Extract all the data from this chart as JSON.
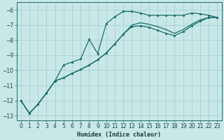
{
  "xlabel": "Humidex (Indice chaleur)",
  "ylabel": "",
  "background_color": "#c8e8e8",
  "grid_color": "#a8cece",
  "line_color": "#1a6b6b",
  "xlim": [
    -0.5,
    23.5
  ],
  "ylim": [
    -13.3,
    -5.5
  ],
  "yticks": [
    -6,
    -7,
    -8,
    -9,
    -10,
    -11,
    -12,
    -13
  ],
  "xticks": [
    0,
    1,
    2,
    3,
    4,
    5,
    6,
    7,
    8,
    9,
    10,
    11,
    12,
    13,
    14,
    15,
    16,
    17,
    18,
    19,
    20,
    21,
    22,
    23
  ],
  "curve1_x": [
    0,
    1,
    2,
    3,
    4,
    5,
    6,
    7,
    8,
    9,
    10,
    11,
    12,
    13,
    14,
    15,
    16,
    17,
    18,
    19,
    20,
    21,
    22,
    23
  ],
  "curve1_y": [
    -12.0,
    -12.85,
    -12.25,
    -11.5,
    -10.7,
    -9.65,
    -9.45,
    -9.25,
    -7.95,
    -8.9,
    -6.9,
    -6.45,
    -6.1,
    -6.1,
    -6.2,
    -6.35,
    -6.35,
    -6.35,
    -6.35,
    -6.35,
    -6.2,
    -6.25,
    -6.35,
    -6.5
  ],
  "curve2_x": [
    0,
    1,
    2,
    3,
    4,
    5,
    6,
    7,
    8,
    9,
    10,
    11,
    12,
    13,
    14,
    15,
    16,
    17,
    18,
    19,
    20,
    21,
    22,
    23
  ],
  "curve2_y": [
    -12.0,
    -12.85,
    -12.25,
    -11.5,
    -10.7,
    -10.5,
    -10.2,
    -9.95,
    -9.65,
    -9.3,
    -8.85,
    -8.25,
    -7.6,
    -7.1,
    -7.05,
    -7.15,
    -7.35,
    -7.55,
    -7.7,
    -7.45,
    -7.05,
    -6.75,
    -6.5,
    -6.5
  ],
  "curve3_x": [
    0,
    1,
    2,
    3,
    4,
    5,
    6,
    7,
    8,
    9,
    10,
    11,
    12,
    13,
    14,
    15,
    16,
    17,
    18,
    19,
    20,
    21,
    22,
    23
  ],
  "curve3_y": [
    -12.0,
    -12.85,
    -12.25,
    -11.5,
    -10.7,
    -10.5,
    -10.2,
    -9.95,
    -9.65,
    -9.3,
    -8.85,
    -8.25,
    -7.6,
    -7.0,
    -6.85,
    -6.95,
    -7.1,
    -7.3,
    -7.55,
    -7.3,
    -6.95,
    -6.65,
    -6.5,
    -6.5
  ],
  "figsize": [
    3.2,
    2.0
  ],
  "dpi": 100
}
